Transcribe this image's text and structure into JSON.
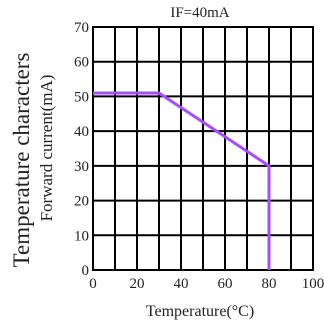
{
  "chart_data": {
    "type": "line",
    "title": "IF=40mA",
    "ylabel_main": "Temperature characters",
    "ylabel_sub": "Forward current(mA)",
    "xlabel": "Temperature(°C)",
    "xlim": [
      0,
      100
    ],
    "ylim": [
      0,
      70
    ],
    "xticks": [
      0,
      20,
      40,
      60,
      80,
      100
    ],
    "yticks": [
      0,
      10,
      20,
      30,
      40,
      50,
      60,
      70
    ],
    "grid": true,
    "colors": {
      "line": "#a64dff",
      "grid": "#000000",
      "text": "#222222"
    },
    "series": [
      {
        "x": [
          0,
          30,
          80,
          80
        ],
        "y": [
          51,
          51,
          30,
          0
        ]
      }
    ]
  }
}
